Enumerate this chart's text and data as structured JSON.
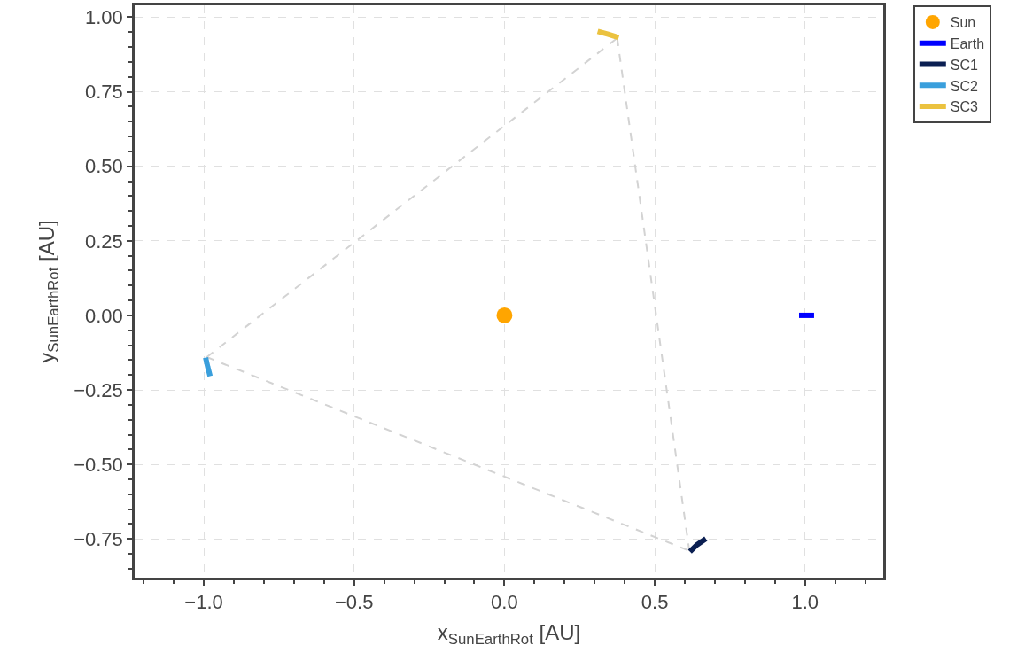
{
  "chart_data": {
    "type": "line",
    "xlabel": "x$_{SunEarthRot}$ [AU]",
    "ylabel": "y$_{SunEarthRot}$ [AU]",
    "xlim": [
      -1.23,
      1.26
    ],
    "ylim": [
      -0.88,
      1.04
    ],
    "xticks": [
      {
        "value": -1.0,
        "label": "−1.0"
      },
      {
        "value": -0.5,
        "label": "−0.5"
      },
      {
        "value": 0.0,
        "label": "0.0"
      },
      {
        "value": 0.5,
        "label": "0.5"
      },
      {
        "value": 1.0,
        "label": "1.0"
      }
    ],
    "yticks": [
      {
        "value": -0.75,
        "label": "−0.75"
      },
      {
        "value": -0.5,
        "label": "−0.50"
      },
      {
        "value": -0.25,
        "label": "−0.25"
      },
      {
        "value": 0.0,
        "label": "0.00"
      },
      {
        "value": 0.25,
        "label": "0.25"
      },
      {
        "value": 0.5,
        "label": "0.50"
      },
      {
        "value": 0.75,
        "label": "0.75"
      },
      {
        "value": 1.0,
        "label": "1.00"
      }
    ],
    "grid": true,
    "legend": "top right",
    "series": [
      {
        "color": "#d3d3d3",
        "line_style": "dashed",
        "x": [
          -0.99,
          0.375
        ],
        "values": [
          -0.14,
          0.93
        ]
      },
      {
        "color": "#d3d3d3",
        "line_style": "dashed",
        "x": [
          0.375,
          0.615
        ],
        "values": [
          0.93,
          -0.79
        ]
      },
      {
        "color": "#d3d3d3",
        "line_style": "dashed",
        "x": [
          -0.99,
          0.615
        ],
        "values": [
          -0.14,
          -0.79
        ]
      },
      {
        "name": "Sun",
        "type": "scatter",
        "marker": "circle",
        "color": "#ffa500",
        "x": [
          0.0
        ],
        "values": [
          0.0
        ]
      },
      {
        "name": "Earth",
        "color": "#0000ff",
        "x": [
          0.98,
          1.0,
          1.03
        ],
        "values": [
          0.0,
          0.0,
          0.0
        ]
      },
      {
        "name": "SC1",
        "color": "#0b1f52",
        "x": [
          0.617,
          0.64,
          0.67
        ],
        "values": [
          -0.793,
          -0.77,
          -0.749
        ]
      },
      {
        "name": "SC2",
        "color": "#3a9fdc",
        "x": [
          -0.994,
          -0.987,
          -0.979
        ],
        "values": [
          -0.142,
          -0.173,
          -0.204
        ]
      },
      {
        "name": "SC3",
        "color": "#ebc23f",
        "x": [
          0.31,
          0.345,
          0.38
        ],
        "values": [
          0.953,
          0.943,
          0.932
        ]
      }
    ]
  }
}
